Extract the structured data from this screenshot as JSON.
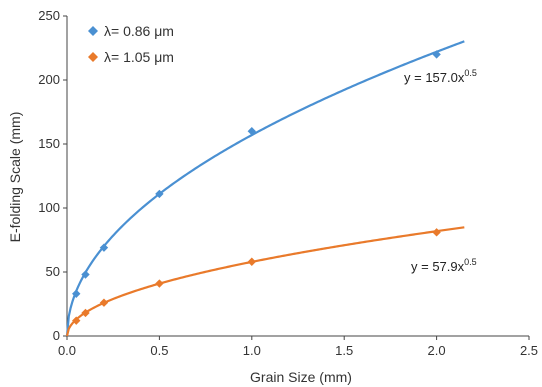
{
  "chart_data": {
    "type": "scatter",
    "xlabel": "Grain Size (mm)",
    "ylabel": "E-folding Scale (mm)",
    "xlim": [
      0,
      2.5
    ],
    "ylim": [
      0,
      250
    ],
    "xticks": [
      "0.0",
      "0.5",
      "1.0",
      "1.5",
      "2.0",
      "2.5"
    ],
    "yticks": [
      "0",
      "50",
      "100",
      "150",
      "200",
      "250"
    ],
    "grid": false,
    "legend_position": "top-left",
    "series": [
      {
        "name": "λ= 0.86 μm",
        "color": "#4a90d2",
        "marker": "diamond",
        "points": [
          [
            0.05,
            33
          ],
          [
            0.1,
            48
          ],
          [
            0.2,
            69
          ],
          [
            0.5,
            111
          ],
          [
            1.0,
            160
          ],
          [
            2.0,
            220
          ]
        ],
        "fit": {
          "coef": 157.0,
          "exponent": 0.5,
          "x_end": 2.15
        },
        "equation_base": "y = 157.0x",
        "equation_exp": "0.5"
      },
      {
        "name": "λ= 1.05 μm",
        "color": "#e97a2b",
        "marker": "diamond",
        "points": [
          [
            0.05,
            12
          ],
          [
            0.1,
            18
          ],
          [
            0.2,
            26
          ],
          [
            0.5,
            41
          ],
          [
            1.0,
            58
          ],
          [
            2.0,
            81
          ]
        ],
        "fit": {
          "coef": 57.9,
          "exponent": 0.5,
          "x_end": 2.15
        },
        "equation_base": "y = 57.9x",
        "equation_exp": "0.5"
      }
    ]
  }
}
